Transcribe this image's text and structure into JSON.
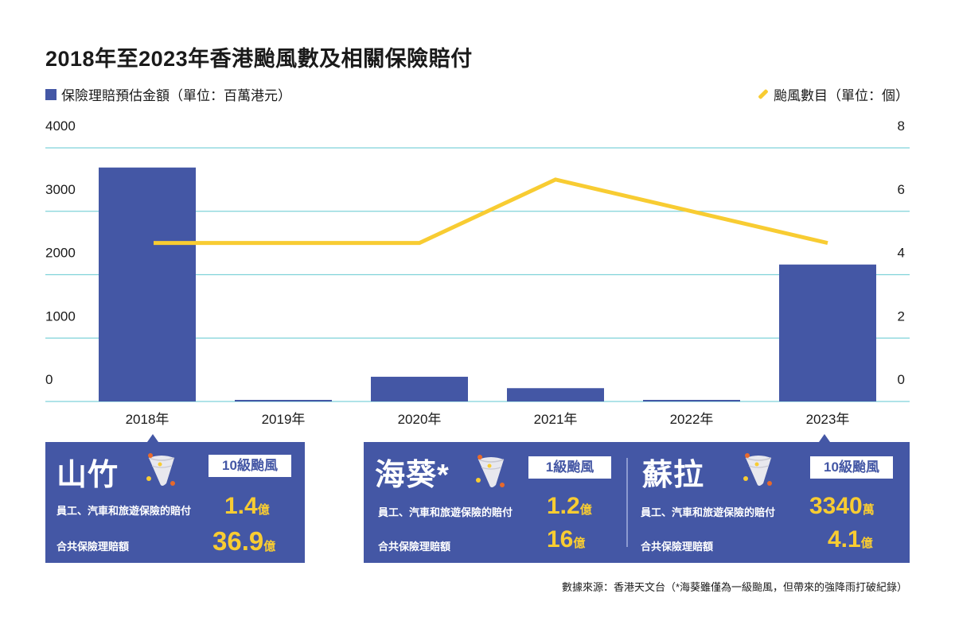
{
  "title": "2018年至2023年香港颱風數及相關保險賠付",
  "legend": {
    "bars_label": "保險理賠預估金額（單位：百萬港元）",
    "line_label": "颱風數目（單位：個）",
    "bar_icon": "square-swatch-icon",
    "line_icon": "line-swatch-icon"
  },
  "colors": {
    "bar": "#4457a5",
    "line": "#f8cc32",
    "grid": "#7fd2d9",
    "card": "#4457a5"
  },
  "chart_data": {
    "type": "bar",
    "title": "2018年至2023年香港颱風數及相關保險賠付",
    "categories": [
      "2018年",
      "2019年",
      "2020年",
      "2021年",
      "2022年",
      "2023年"
    ],
    "series": [
      {
        "name": "保險理賠預估金額（單位：百萬港元）",
        "type": "bar",
        "axis": "left",
        "values": [
          3690,
          25,
          390,
          210,
          25,
          2160
        ]
      },
      {
        "name": "颱風數目（單位：個）",
        "type": "line",
        "axis": "right",
        "values": [
          5,
          5,
          5,
          7,
          6,
          5
        ]
      }
    ],
    "left_axis": {
      "ylim": [
        0,
        4000
      ],
      "ticks": [
        "0",
        "1000",
        "2000",
        "3000",
        "4000"
      ]
    },
    "right_axis": {
      "ylim": [
        0,
        8
      ],
      "ticks": [
        "0",
        "2",
        "4",
        "6",
        "8"
      ]
    },
    "xlabel": "",
    "ylabel": "",
    "grid": true,
    "legend": "top"
  },
  "cards": [
    {
      "name": "山竹",
      "badge": "10級颱風",
      "row1_label": "員工、汽車和旅遊保險的賠付",
      "row1_value": "1.4",
      "row1_unit": "億",
      "row2_label": "合共保險理賠額",
      "row2_value": "36.9",
      "row2_unit": "億",
      "icon": "typhoon-icon"
    },
    {
      "name": "海葵*",
      "badge": "1級颱風",
      "row1_label": "員工、汽車和旅遊保險的賠付",
      "row1_value": "1.2",
      "row1_unit": "億",
      "row2_label": "合共保險理賠額",
      "row2_value": "16",
      "row2_unit": "億",
      "icon": "typhoon-icon"
    },
    {
      "name": "蘇拉",
      "badge": "10級颱風",
      "row1_label": "員工、汽車和旅遊保險的賠付",
      "row1_value": "3340",
      "row1_unit": "萬",
      "row2_label": "合共保險理賠額",
      "row2_value": "4.1",
      "row2_unit": "億",
      "icon": "typhoon-icon"
    }
  ],
  "source": "數據來源：香港天文台（*海葵雖僅為一級颱風，但帶來的強降雨打破紀錄）"
}
